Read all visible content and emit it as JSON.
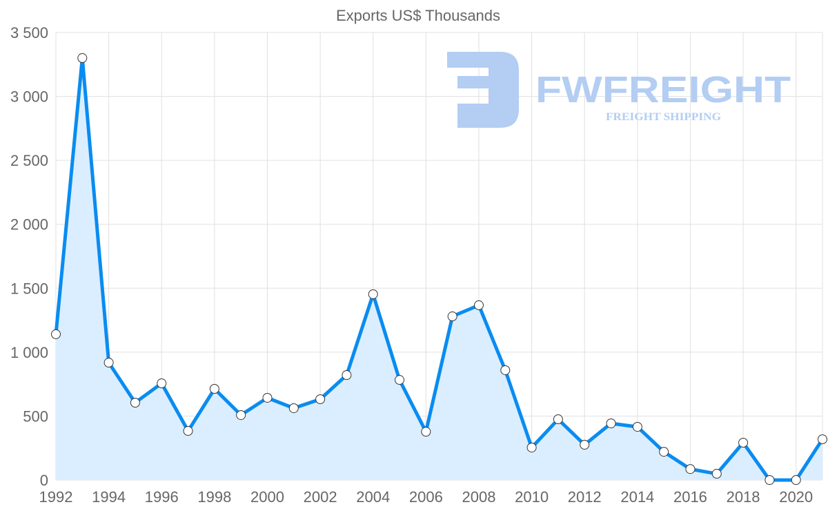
{
  "chart_data": {
    "type": "line",
    "title": "Exports US$ Thousands",
    "xlabel": "",
    "ylabel": "",
    "x": [
      1992,
      1993,
      1994,
      1995,
      1996,
      1997,
      1998,
      1999,
      2000,
      2001,
      2002,
      2003,
      2004,
      2005,
      2006,
      2007,
      2008,
      2009,
      2010,
      2011,
      2012,
      2013,
      2014,
      2015,
      2016,
      2017,
      2018,
      2019,
      2020,
      2021
    ],
    "series": [
      {
        "name": "Exports US$ Thousands",
        "values": [
          1140,
          3300,
          918,
          605,
          756,
          384,
          713,
          508,
          643,
          562,
          632,
          821,
          1453,
          783,
          378,
          1280,
          1367,
          859,
          254,
          475,
          276,
          443,
          416,
          221,
          86,
          49,
          292,
          0,
          0,
          319
        ]
      }
    ],
    "ylim": [
      0,
      3500
    ],
    "xlim": [
      1992,
      2021
    ],
    "yticks": [
      0,
      500,
      1000,
      1500,
      2000,
      2500,
      3000,
      3500
    ],
    "ytick_labels": [
      "0",
      "500",
      "1 000",
      "1 500",
      "2 000",
      "2 500",
      "3 000",
      "3 500"
    ],
    "xticks": [
      1992,
      1994,
      1996,
      1998,
      2000,
      2002,
      2004,
      2006,
      2008,
      2010,
      2012,
      2014,
      2016,
      2018,
      2020
    ],
    "xtick_labels": [
      "1992",
      "1994",
      "1996",
      "1998",
      "2000",
      "2002",
      "2004",
      "2006",
      "2008",
      "2010",
      "2012",
      "2014",
      "2016",
      "2018",
      "2020"
    ],
    "grid": true,
    "fill": true,
    "colors": {
      "line": "#0a8cf0",
      "fill": "#dbeeff",
      "grid": "#e0e0e0",
      "watermark": "#b3cdf3"
    }
  },
  "watermark": {
    "brand": "FWFREIGHT",
    "tagline": "FREIGHT SHIPPING"
  }
}
